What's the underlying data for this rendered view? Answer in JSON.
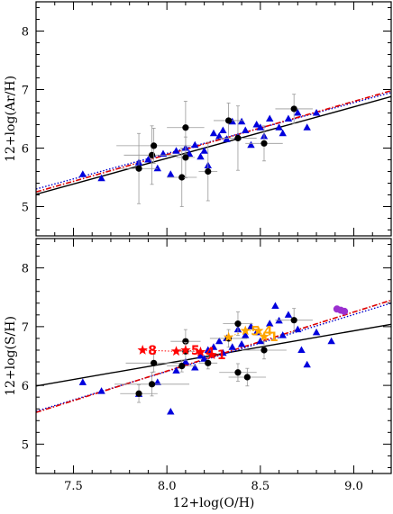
{
  "chart_data": [
    {
      "type": "scatter",
      "panel": "top",
      "xlabel": "",
      "ylabel": "12+log(Ar/H)",
      "xlim": [
        7.3,
        9.2
      ],
      "ylim": [
        4.5,
        8.5
      ],
      "yticks": [
        5,
        6,
        7,
        8
      ],
      "series": [
        {
          "marker": "triangle",
          "color": "#0000dd",
          "points": [
            [
              7.55,
              5.55
            ],
            [
              7.65,
              5.48
            ],
            [
              7.85,
              5.75
            ],
            [
              7.9,
              5.8
            ],
            [
              7.95,
              5.65
            ],
            [
              7.98,
              5.9
            ],
            [
              8.02,
              5.55
            ],
            [
              8.05,
              5.95
            ],
            [
              8.1,
              6.0
            ],
            [
              8.12,
              5.9
            ],
            [
              8.15,
              6.05
            ],
            [
              8.18,
              5.85
            ],
            [
              8.2,
              5.95
            ],
            [
              8.22,
              5.7
            ],
            [
              8.25,
              6.25
            ],
            [
              8.28,
              6.2
            ],
            [
              8.3,
              6.3
            ],
            [
              8.32,
              6.15
            ],
            [
              8.35,
              6.45
            ],
            [
              8.38,
              6.2
            ],
            [
              8.4,
              6.45
            ],
            [
              8.42,
              6.3
            ],
            [
              8.45,
              6.05
            ],
            [
              8.48,
              6.4
            ],
            [
              8.5,
              6.35
            ],
            [
              8.52,
              6.2
            ],
            [
              8.55,
              6.5
            ],
            [
              8.6,
              6.35
            ],
            [
              8.62,
              6.25
            ],
            [
              8.65,
              6.5
            ],
            [
              8.7,
              6.6
            ],
            [
              8.75,
              6.35
            ],
            [
              8.8,
              6.6
            ]
          ]
        },
        {
          "marker": "circle",
          "color": "#000000",
          "points": [
            {
              "x": 7.85,
              "y": 5.65,
              "xerr": 0.1,
              "yerr": 0.6
            },
            {
              "x": 7.92,
              "y": 5.88,
              "xerr": 0.15,
              "yerr": 0.5
            },
            {
              "x": 7.93,
              "y": 6.04,
              "xerr": 0.2,
              "yerr": 0.3
            },
            {
              "x": 8.08,
              "y": 5.5,
              "xerr": 0.08,
              "yerr": 0.5
            },
            {
              "x": 8.1,
              "y": 5.84,
              "xerr": 0.05,
              "yerr": 0.35
            },
            {
              "x": 8.1,
              "y": 6.35,
              "xerr": 0.1,
              "yerr": 0.45
            },
            {
              "x": 8.22,
              "y": 5.6,
              "xerr": 0.05,
              "yerr": 0.5
            },
            {
              "x": 8.33,
              "y": 6.47,
              "xerr": 0.08,
              "yerr": 0.3
            },
            {
              "x": 8.38,
              "y": 6.17,
              "xerr": 0.1,
              "yerr": 0.55
            },
            {
              "x": 8.52,
              "y": 6.08,
              "xerr": 0.1,
              "yerr": 0.3
            },
            {
              "x": 8.68,
              "y": 6.67,
              "xerr": 0.1,
              "yerr": 0.25
            }
          ]
        }
      ],
      "fits": [
        {
          "style": "solid",
          "color": "#000000",
          "x": [
            7.3,
            9.2
          ],
          "y": [
            5.21,
            6.88
          ]
        },
        {
          "style": "dotted",
          "color": "#0000cc",
          "x": [
            7.3,
            9.2
          ],
          "y": [
            5.3,
            6.95
          ]
        },
        {
          "style": "dashed",
          "color": "#dd0000",
          "x": [
            7.3,
            9.2
          ],
          "y": [
            5.25,
            6.98
          ]
        }
      ]
    },
    {
      "type": "scatter",
      "panel": "bottom",
      "xlabel": "12+log(O/H)",
      "ylabel": "12+log(S/H)",
      "xlim": [
        7.3,
        9.2
      ],
      "ylim": [
        4.5,
        8.5
      ],
      "xticks": [
        "7.5",
        "8.0",
        "8.5",
        "9.0"
      ],
      "yticks": [
        5,
        6,
        7,
        8
      ],
      "series": [
        {
          "marker": "triangle",
          "color": "#0000dd",
          "points": [
            [
              7.55,
              6.05
            ],
            [
              7.65,
              5.9
            ],
            [
              7.85,
              5.85
            ],
            [
              7.95,
              6.05
            ],
            [
              8.02,
              5.55
            ],
            [
              8.05,
              6.25
            ],
            [
              8.1,
              6.4
            ],
            [
              8.15,
              6.3
            ],
            [
              8.18,
              6.5
            ],
            [
              8.2,
              6.45
            ],
            [
              8.22,
              6.6
            ],
            [
              8.25,
              6.65
            ],
            [
              8.28,
              6.75
            ],
            [
              8.3,
              6.55
            ],
            [
              8.32,
              6.8
            ],
            [
              8.35,
              6.65
            ],
            [
              8.38,
              6.95
            ],
            [
              8.4,
              6.7
            ],
            [
              8.42,
              6.85
            ],
            [
              8.45,
              7.0
            ],
            [
              8.48,
              6.9
            ],
            [
              8.5,
              6.75
            ],
            [
              8.55,
              7.05
            ],
            [
              8.58,
              7.35
            ],
            [
              8.6,
              7.1
            ],
            [
              8.62,
              6.85
            ],
            [
              8.65,
              7.2
            ],
            [
              8.7,
              6.95
            ],
            [
              8.72,
              6.6
            ],
            [
              8.75,
              6.35
            ],
            [
              8.8,
              6.9
            ],
            [
              8.88,
              6.75
            ]
          ]
        },
        {
          "marker": "circle",
          "color": "#000000",
          "points": [
            {
              "x": 7.85,
              "y": 5.86,
              "xerr": 0.1,
              "yerr": 0.15
            },
            {
              "x": 7.92,
              "y": 6.02,
              "xerr": 0.2,
              "yerr": 0.2
            },
            {
              "x": 7.93,
              "y": 6.38,
              "xerr": 0.15,
              "yerr": 0.15
            },
            {
              "x": 8.08,
              "y": 6.33,
              "xerr": 0.08,
              "yerr": 0.1
            },
            {
              "x": 8.1,
              "y": 6.75,
              "xerr": 0.08,
              "yerr": 0.2
            },
            {
              "x": 8.1,
              "y": 6.58,
              "xerr": 0.05,
              "yerr": 0.15
            },
            {
              "x": 8.22,
              "y": 6.38,
              "xerr": 0.05,
              "yerr": 0.1
            },
            {
              "x": 8.33,
              "y": 6.8,
              "xerr": 0.1,
              "yerr": 0.15
            },
            {
              "x": 8.38,
              "y": 6.22,
              "xerr": 0.1,
              "yerr": 0.15
            },
            {
              "x": 8.38,
              "y": 7.05,
              "xerr": 0.08,
              "yerr": 0.2
            },
            {
              "x": 8.43,
              "y": 6.14,
              "xerr": 0.1,
              "yerr": 0.15
            },
            {
              "x": 8.52,
              "y": 6.6,
              "xerr": 0.12,
              "yerr": 0.15
            },
            {
              "x": 8.68,
              "y": 7.11,
              "xerr": 0.1,
              "yerr": 0.2
            }
          ]
        },
        {
          "marker": "star",
          "color": "#ff0000",
          "points": [
            {
              "x": 7.87,
              "y": 6.6,
              "label": "8"
            },
            {
              "x": 8.05,
              "y": 6.58,
              "label": ""
            },
            {
              "x": 8.1,
              "y": 6.6,
              "label": "5"
            },
            {
              "x": 8.18,
              "y": 6.57,
              "label": "4"
            },
            {
              "x": 8.24,
              "y": 6.52,
              "label": "1"
            }
          ]
        },
        {
          "marker": "star",
          "color": "#ffa500",
          "points": [
            {
              "x": 8.33,
              "y": 6.82,
              "label": ""
            },
            {
              "x": 8.42,
              "y": 6.93,
              "label": "5"
            },
            {
              "x": 8.49,
              "y": 6.93,
              "label": "4"
            },
            {
              "x": 8.52,
              "y": 6.83,
              "label": "1"
            }
          ]
        },
        {
          "marker": "circle-filled",
          "color": "#9b30d0",
          "points": [
            [
              8.91,
              7.3
            ],
            [
              8.93,
              7.28
            ],
            [
              8.95,
              7.26
            ]
          ]
        }
      ],
      "fits": [
        {
          "style": "solid",
          "color": "#000000",
          "x": [
            7.3,
            9.2
          ],
          "y": [
            5.99,
            7.04
          ]
        },
        {
          "style": "dotted",
          "color": "#0000cc",
          "x": [
            7.3,
            9.2
          ],
          "y": [
            5.56,
            7.4
          ]
        },
        {
          "style": "dashed",
          "color": "#dd0000",
          "x": [
            7.3,
            9.2
          ],
          "y": [
            5.54,
            7.45
          ]
        }
      ]
    }
  ]
}
